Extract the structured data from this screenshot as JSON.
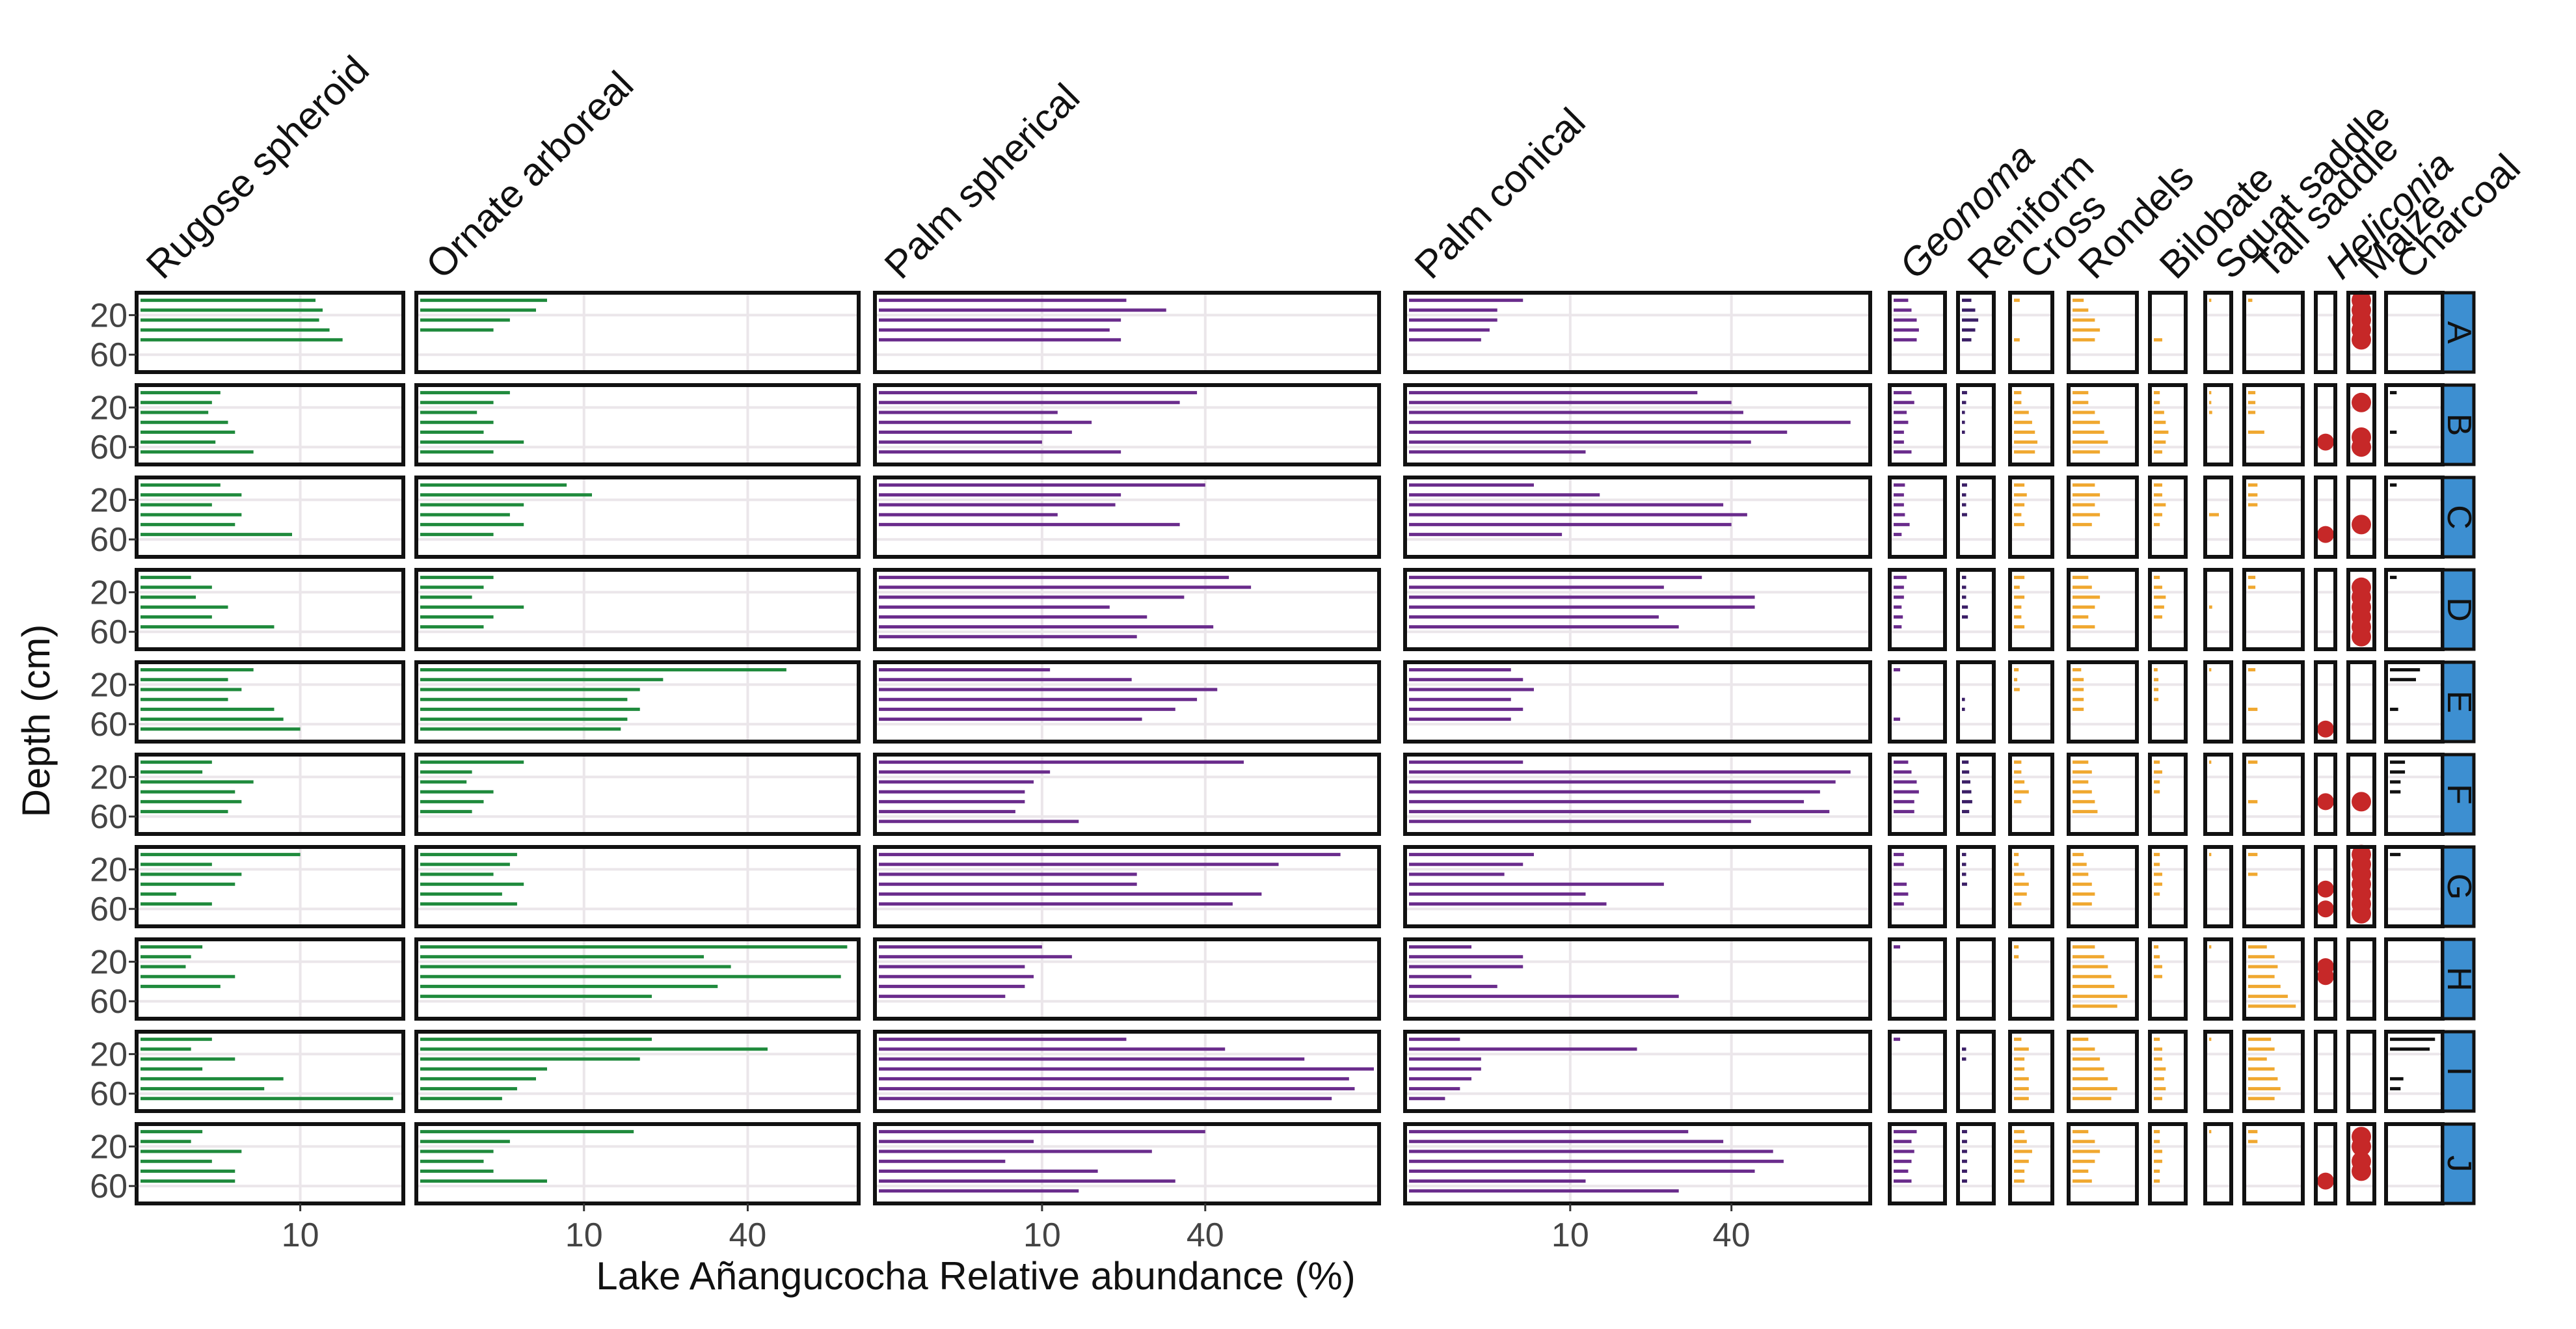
{
  "chart_data": {
    "type": "bar",
    "orientation": "horizontal",
    "layout": "faceted grid: rows = sites, columns = taxa",
    "xlabel": "Lake Añangucocha Relative abundance (%)",
    "ylabel": "Depth (cm)",
    "x_scale": "sqrt",
    "y_tick_labels": [
      "20",
      "60"
    ],
    "y_ticks": [
      20,
      60
    ],
    "depths": [
      5,
      15,
      25,
      35,
      45,
      55,
      65
    ],
    "grid": true,
    "sites": [
      "A",
      "B",
      "C",
      "D",
      "E",
      "F",
      "G",
      "H",
      "I",
      "J"
    ],
    "columns": [
      {
        "name": "Rugose spheroid",
        "italic": false,
        "color": "#1f8a3c",
        "xlim": [
          0,
          26
        ],
        "x_tick_labels": [
          "10"
        ],
        "x_ticks": [
          10
        ],
        "kind": "bar",
        "values": {
          "A": [
            12,
            13,
            12.5,
            14,
            16
          ],
          "B": [
            2.5,
            2,
            1.8,
            3,
            3.5,
            2.2,
            5
          ],
          "C": [
            2.5,
            4,
            2,
            4,
            3.5,
            9
          ],
          "D": [
            1,
            2,
            1.2,
            3,
            2,
            7
          ],
          "E": [
            5,
            3,
            4,
            3,
            7,
            8,
            10
          ],
          "F": [
            2,
            1.5,
            5,
            3.5,
            4,
            3
          ],
          "G": [
            10,
            2,
            4,
            3.5,
            0.5,
            2
          ],
          "H": [
            1.5,
            1,
            0.8,
            3.5,
            2.5
          ],
          "I": [
            2,
            1,
            3.5,
            1.5,
            8,
            6,
            25,
            3
          ],
          "J": [
            1.5,
            1,
            4,
            2,
            3.5,
            3.5
          ]
        }
      },
      {
        "name": "Ornate arboreal",
        "italic": false,
        "color": "#1f8a3c",
        "xlim": [
          0,
          70
        ],
        "x_tick_labels": [
          "10",
          "40"
        ],
        "x_ticks": [
          10,
          40
        ],
        "kind": "bar",
        "values": {
          "A": [
            6,
            5,
            3,
            2
          ],
          "B": [
            3,
            2,
            1.2,
            2,
            1.5,
            4,
            2
          ],
          "C": [
            8,
            11,
            4,
            3,
            4,
            2
          ],
          "D": [
            2,
            1.5,
            1,
            4,
            2,
            1.5
          ],
          "E": [
            50,
            22,
            18,
            16,
            18,
            16,
            15
          ],
          "F": [
            4,
            1,
            0.8,
            2,
            1.5,
            1
          ],
          "G": [
            3.5,
            3,
            2,
            4,
            2.5,
            3.5
          ],
          "H": [
            68,
            30,
            36,
            66,
            33,
            20
          ],
          "I": [
            20,
            45,
            18,
            6,
            5,
            3.5,
            2.5,
            8,
            5
          ],
          "J": [
            17,
            3,
            2,
            1.5,
            2,
            6
          ]
        }
      },
      {
        "name": "Palm spherical",
        "italic": false,
        "color": "#6a2c8c",
        "xlim": [
          0,
          92
        ],
        "x_tick_labels": [
          "10",
          "40"
        ],
        "x_ticks": [
          10,
          40
        ],
        "kind": "bar",
        "values": {
          "A": [
            23,
            31,
            22,
            20,
            22
          ],
          "B": [
            38,
            34,
            12,
            17,
            14,
            10,
            22
          ],
          "C": [
            40,
            22,
            21,
            12,
            34
          ],
          "D": [
            46,
            52,
            35,
            20,
            27,
            42,
            25
          ],
          "E": [
            11,
            24,
            43,
            38,
            33,
            26
          ],
          "F": [
            50,
            11,
            9,
            8,
            8,
            7,
            15
          ],
          "G": [
            80,
            60,
            25,
            25,
            55,
            47
          ],
          "H": [
            10,
            14,
            8,
            9,
            8,
            6
          ],
          "I": [
            23,
            45,
            68,
            92,
            83,
            85,
            77,
            88,
            25
          ],
          "J": [
            40,
            9,
            28,
            6,
            18,
            33,
            15
          ]
        }
      },
      {
        "name": "Palm conical",
        "italic": false,
        "color": "#6a2c8c",
        "xlim": [
          0,
          80
        ],
        "x_tick_labels": [
          "10",
          "40"
        ],
        "x_ticks": [
          10,
          40
        ],
        "kind": "bar",
        "values": {
          "A": [
            5,
            3,
            3,
            2.5,
            2
          ],
          "B": [
            32,
            40,
            43,
            75,
            55,
            45,
            12
          ],
          "C": [
            6,
            14,
            38,
            44,
            40,
            9
          ],
          "D": [
            33,
            25,
            46,
            46,
            24,
            28
          ],
          "E": [
            4,
            5,
            6,
            4,
            5,
            4
          ],
          "F": [
            5,
            75,
            70,
            65,
            60,
            68,
            45
          ],
          "G": [
            6,
            5,
            3.5,
            25,
            12,
            15
          ],
          "H": [
            1.5,
            5,
            5,
            1.5,
            3,
            28
          ],
          "I": [
            1,
            20,
            2,
            2,
            1.5,
            1,
            0.5,
            3,
            1
          ],
          "J": [
            30,
            38,
            51,
            54,
            46,
            12,
            28
          ]
        }
      },
      {
        "name": "Geonoma",
        "italic": true,
        "color": "#6a2c8c",
        "xlim": [
          0,
          10
        ],
        "x_tick_labels": [],
        "x_ticks": [],
        "kind": "bar",
        "values": {
          "A": [
            1,
            1.5,
            2.5,
            3,
            2.5
          ],
          "B": [
            1.5,
            2,
            0.8,
            1,
            0.5,
            0.5,
            1.5
          ],
          "C": [
            0.6,
            0.5,
            0.5,
            0.6,
            1.2,
            0.3
          ],
          "D": [
            0.8,
            0.5,
            0.5,
            0.3,
            0.4,
            0.3
          ],
          "E": [
            0.2,
            0,
            0,
            0,
            0,
            0.2
          ],
          "F": [
            1,
            1.5,
            2.5,
            3,
            2,
            2
          ],
          "G": [
            0.5,
            0.5,
            0,
            0.8,
            1,
            0.5
          ],
          "H": [
            0.2
          ],
          "I": [
            0.2
          ],
          "J": [
            2.5,
            1.5,
            2,
            1.5,
            1,
            1.5
          ]
        }
      },
      {
        "name": "Reniform",
        "italic": false,
        "color": "#3b1f66",
        "xlim": [
          0,
          8
        ],
        "x_tick_labels": [],
        "x_ticks": [],
        "kind": "bar",
        "values": {
          "A": [
            1,
            2,
            3,
            2,
            1
          ],
          "B": [
            0.3,
            0.2,
            0.1,
            0.1,
            0.1
          ],
          "C": [
            0.3,
            0.2,
            0.2,
            0.3
          ],
          "D": [
            0.2,
            0.2,
            0.2,
            0.4,
            0.4
          ],
          "E": [
            0,
            0,
            0,
            0.1,
            0.1
          ],
          "F": [
            0.5,
            0.6,
            0.8,
            1,
            1.2,
            0.6
          ],
          "G": [
            0.2,
            0.2,
            0.2,
            0.3
          ],
          "H": [],
          "I": [
            0,
            0.2,
            0.2
          ],
          "J": [
            0.3,
            0.3,
            0.3,
            0.3,
            0.3,
            0.3
          ]
        }
      },
      {
        "name": "Cross",
        "italic": false,
        "color": "#f0a830",
        "xlim": [
          0,
          10
        ],
        "x_tick_labels": [],
        "x_ticks": [],
        "kind": "bar",
        "values": {
          "A": [
            0.3,
            0,
            0,
            0,
            0.3
          ],
          "B": [
            0.5,
            0.5,
            2,
            3,
            4,
            5,
            4
          ],
          "C": [
            1,
            1.5,
            1,
            0.5,
            1
          ],
          "D": [
            1,
            0.3,
            1,
            0.5,
            0.5,
            1
          ],
          "E": [
            0.2,
            0.1,
            0.3
          ],
          "F": [
            0.5,
            0.5,
            1,
            2,
            0.5
          ],
          "G": [
            0.2,
            0.2,
            1,
            2,
            1.5,
            0.5
          ],
          "H": [
            0.2,
            0.2
          ],
          "I": [
            0.5,
            2,
            1,
            1,
            2,
            2,
            2,
            1
          ],
          "J": [
            1,
            1.5,
            3,
            2,
            1,
            1
          ]
        }
      },
      {
        "name": "Rondels",
        "italic": false,
        "color": "#f0a830",
        "xlim": [
          0,
          14
        ],
        "x_tick_labels": [],
        "x_ticks": [],
        "kind": "bar",
        "values": {
          "A": [
            0.5,
            1,
            2,
            3,
            2
          ],
          "B": [
            1,
            1,
            2,
            3,
            4,
            5,
            3
          ],
          "C": [
            2,
            3,
            2,
            3,
            1.5
          ],
          "D": [
            1,
            1.5,
            3,
            2,
            1,
            2
          ],
          "E": [
            0.3,
            0.5,
            0.5,
            0.5,
            0.5
          ],
          "F": [
            1,
            1.5,
            1,
            1.5,
            2,
            2.5
          ],
          "G": [
            0.5,
            0.8,
            1,
            1.5,
            2,
            1.5
          ],
          "H": [
            2,
            4,
            5,
            6,
            7,
            12,
            8
          ],
          "I": [
            1,
            2,
            3,
            4,
            5,
            8,
            6,
            3
          ],
          "J": [
            1,
            2,
            3,
            2,
            1,
            1.5
          ]
        }
      },
      {
        "name": "Bilobate",
        "italic": false,
        "color": "#f0a830",
        "xlim": [
          0,
          10
        ],
        "x_tick_labels": [],
        "x_ticks": [],
        "kind": "bar",
        "values": {
          "A": [
            0,
            0,
            0,
            0,
            1
          ],
          "B": [
            0.5,
            0.5,
            1.5,
            2,
            3,
            2,
            1
          ],
          "C": [
            1,
            1,
            2,
            1,
            0.5
          ],
          "D": [
            0.5,
            1,
            2,
            1.5,
            1
          ],
          "E": [
            0.2,
            0.3,
            0.3,
            0.3
          ],
          "F": [
            0.5,
            1,
            0.5,
            0.5
          ],
          "G": [
            0.5,
            0.5,
            1,
            1,
            0.5
          ],
          "H": [
            0.3,
            0.5,
            1,
            1
          ],
          "I": [
            0.5,
            1,
            1,
            2,
            1.5,
            2,
            1
          ],
          "J": [
            0.5,
            0.5,
            1,
            1,
            0.5,
            0.5
          ]
        }
      },
      {
        "name": "Squat saddle",
        "italic": false,
        "color": "#f0a830",
        "xlim": [
          0,
          6
        ],
        "x_tick_labels": [],
        "x_ticks": [],
        "kind": "bar",
        "values": {
          "A": [
            0.1
          ],
          "B": [
            0.1,
            0.1,
            0.2
          ],
          "C": [
            0,
            0,
            0,
            2
          ],
          "D": [
            0,
            0,
            0,
            0.2
          ],
          "E": [
            0.1
          ],
          "F": [
            0.1
          ],
          "G": [
            0.1
          ],
          "H": [
            0.1
          ],
          "I": [
            0.1
          ],
          "J": [
            0.1
          ]
        }
      },
      {
        "name": "Tall saddle",
        "italic": false,
        "color": "#f0a830",
        "xlim": [
          0,
          14
        ],
        "x_tick_labels": [],
        "x_ticks": [],
        "kind": "bar",
        "values": {
          "A": [
            0.1
          ],
          "B": [
            0.3,
            0.3,
            0.3,
            0,
            1.5
          ],
          "C": [
            0.5,
            0.5,
            0.5
          ],
          "D": [
            0.3,
            0.3
          ],
          "E": [
            0.3,
            0,
            0,
            0,
            0.5
          ],
          "F": [
            0.5,
            0,
            0,
            0,
            0.5
          ],
          "G": [
            0.5,
            0,
            0.5
          ],
          "H": [
            2,
            4,
            5,
            4,
            6,
            9,
            13
          ],
          "I": [
            3,
            4,
            2,
            4,
            5,
            6,
            4
          ],
          "J": [
            0.5,
            0.5
          ]
        }
      },
      {
        "name": "Heliconia",
        "italic": true,
        "color": "#c62828",
        "kind": "dot",
        "values": {
          "A": [],
          "B": [
            55
          ],
          "C": [
            55
          ],
          "D": [],
          "E": [
            65
          ],
          "F": [
            45
          ],
          "G": [
            40,
            60
          ],
          "H": [
            25,
            35
          ],
          "I": [],
          "J": [
            55
          ]
        }
      },
      {
        "name": "Maize",
        "italic": false,
        "color": "#c62828",
        "kind": "dot",
        "values": {
          "A": [
            5,
            15,
            25,
            35,
            45
          ],
          "B": [
            15,
            50,
            60
          ],
          "C": [
            45
          ],
          "D": [
            15,
            25,
            35,
            45,
            55,
            65
          ],
          "E": [],
          "F": [
            45
          ],
          "G": [
            5,
            15,
            25,
            35,
            45,
            55,
            65
          ],
          "H": [],
          "I": [],
          "J": [
            10,
            20,
            35,
            45
          ]
        }
      },
      {
        "name": "Charcoal",
        "italic": false,
        "color": "#111111",
        "xlim": [
          0,
          10
        ],
        "x_tick_labels": [],
        "x_ticks": [],
        "kind": "bar",
        "values": {
          "A": [],
          "B": [
            0.2,
            0,
            0,
            0,
            0.2
          ],
          "C": [
            0.2
          ],
          "D": [
            0.2
          ],
          "E": [
            4,
            3,
            0,
            0,
            0.3
          ],
          "F": [
            1,
            1,
            0.5,
            0.5
          ],
          "G": [
            0.5
          ],
          "H": [],
          "I": [
            9,
            7,
            0,
            0,
            0.8,
            0.5
          ],
          "J": []
        }
      }
    ]
  }
}
